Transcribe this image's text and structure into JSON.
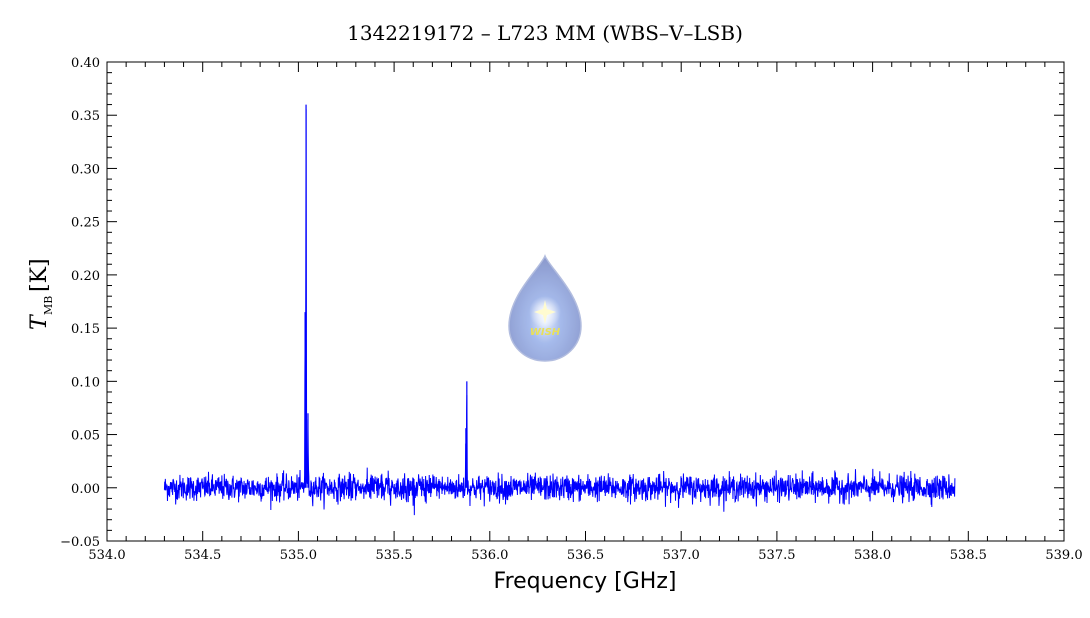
{
  "chart_data": {
    "type": "line",
    "title": "1342219172 – L723 MM (WBS–V–LSB)",
    "xlabel": "Frequency [GHz]",
    "ylabel_main": "T",
    "ylabel_sub": "MB",
    "ylabel_unit": "[K]",
    "xlim": [
      534.0,
      539.0
    ],
    "ylim": [
      -0.05,
      0.4
    ],
    "x_ticks": [
      534.0,
      534.5,
      535.0,
      535.5,
      536.0,
      536.5,
      537.0,
      537.5,
      538.0,
      538.5,
      539.0
    ],
    "x_tick_labels": [
      "534.0",
      "534.5",
      "535.0",
      "535.5",
      "536.0",
      "536.5",
      "537.0",
      "537.5",
      "538.0",
      "538.5",
      "539.0"
    ],
    "y_ticks": [
      -0.05,
      0.0,
      0.05,
      0.1,
      0.15,
      0.2,
      0.25,
      0.3,
      0.35,
      0.4
    ],
    "y_tick_labels": [
      "−0.05",
      "0.00",
      "0.05",
      "0.10",
      "0.15",
      "0.20",
      "0.25",
      "0.30",
      "0.35",
      "0.40"
    ],
    "series": [
      {
        "color": "#0000ff",
        "x_start": 534.3,
        "x_end": 538.43,
        "baseline": 0.0,
        "noise_rms": 0.006,
        "peaks": [
          {
            "x": 535.04,
            "y": 0.36
          },
          {
            "x": 535.035,
            "y": 0.165
          },
          {
            "x": 535.05,
            "y": 0.07
          },
          {
            "x": 535.88,
            "y": 0.1
          },
          {
            "x": 535.875,
            "y": 0.056
          }
        ]
      }
    ],
    "grid": false,
    "legend": "none"
  },
  "logo": {
    "text": "WISH",
    "icon": "water-drop-star-icon",
    "color": "#9aaad8"
  }
}
